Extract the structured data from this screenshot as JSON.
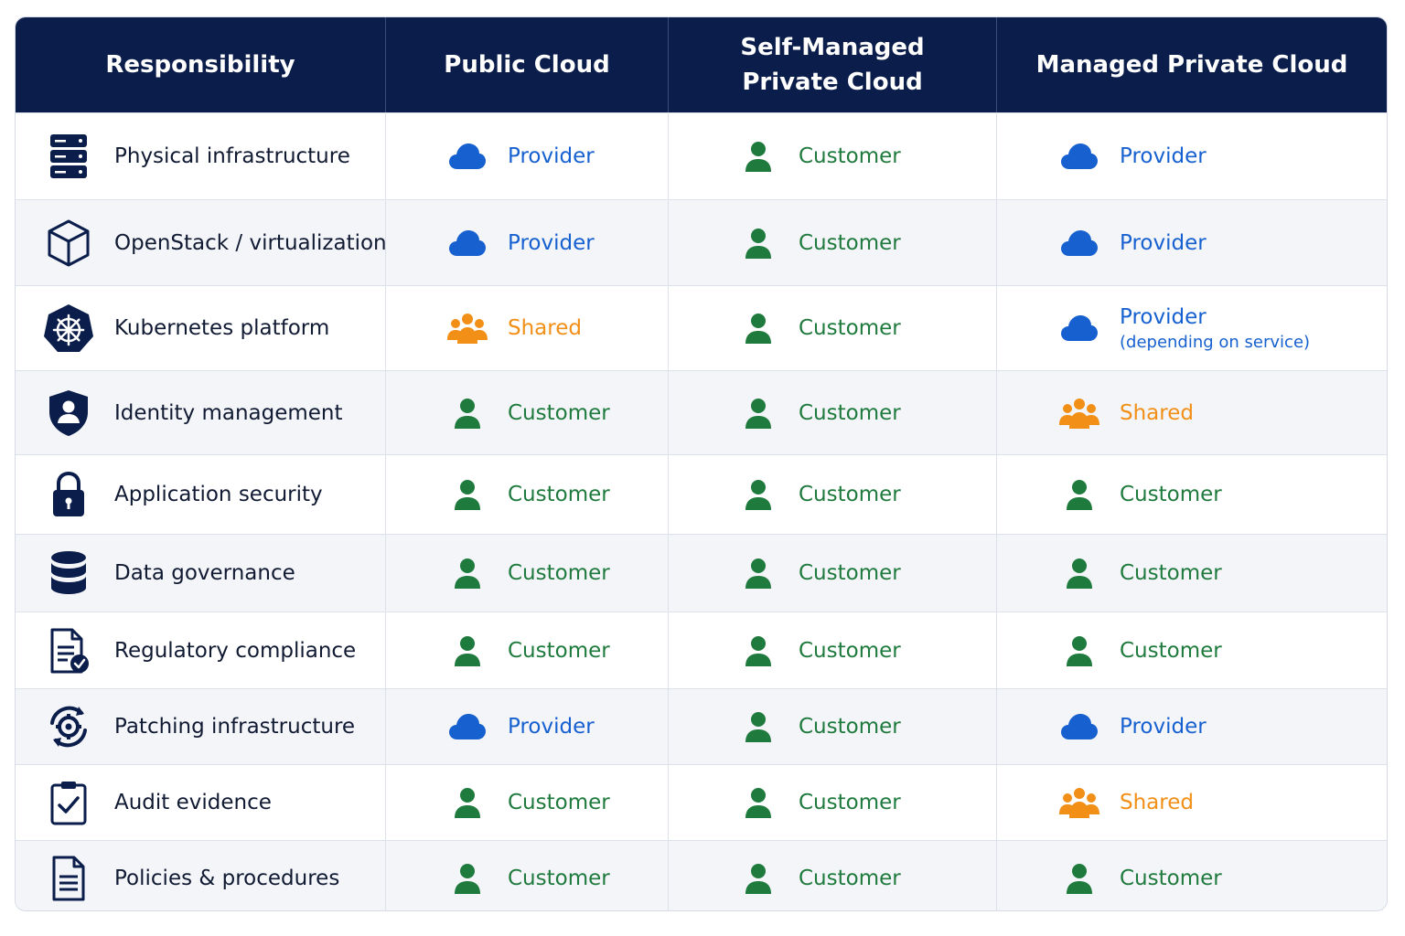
{
  "header": {
    "col_responsibility": "Responsibility",
    "col_public": "Public Cloud",
    "col_self_managed": "Self-Managed\nPrivate Cloud",
    "col_managed": "Managed Private Cloud"
  },
  "colors": {
    "provider": "#1660d0",
    "customer": "#1f7a3d",
    "shared": "#f28f16",
    "header_bg": "#0b1d4b",
    "icon_dark": "#0b1d4b"
  },
  "labels": {
    "provider": "Provider",
    "customer": "Customer",
    "shared": "Shared"
  },
  "rows": [
    {
      "label": "Physical infrastructure",
      "icon": "server-icon",
      "public": "provider",
      "self": "customer",
      "managed": "provider"
    },
    {
      "label": "OpenStack / virtualization",
      "icon": "cube-icon",
      "public": "provider",
      "self": "customer",
      "managed": "provider"
    },
    {
      "label": "Kubernetes platform",
      "icon": "kubernetes-icon",
      "public": "shared",
      "self": "customer",
      "managed": "provider",
      "managed_note": "(depending on service)"
    },
    {
      "label": "Identity management",
      "icon": "shield-user-icon",
      "public": "customer",
      "self": "customer",
      "managed": "shared"
    },
    {
      "label": "Application security",
      "icon": "lock-icon",
      "public": "customer",
      "self": "customer",
      "managed": "customer"
    },
    {
      "label": "Data governance",
      "icon": "database-icon",
      "public": "customer",
      "self": "customer",
      "managed": "customer"
    },
    {
      "label": "Regulatory compliance",
      "icon": "document-check-icon",
      "public": "customer",
      "self": "customer",
      "managed": "customer"
    },
    {
      "label": "Patching infrastructure",
      "icon": "gear-sync-icon",
      "public": "provider",
      "self": "customer",
      "managed": "provider"
    },
    {
      "label": "Audit evidence",
      "icon": "clipboard-check-icon",
      "public": "customer",
      "self": "customer",
      "managed": "shared"
    },
    {
      "label": "Policies & procedures",
      "icon": "document-icon",
      "public": "customer",
      "self": "customer",
      "managed": "customer"
    }
  ]
}
